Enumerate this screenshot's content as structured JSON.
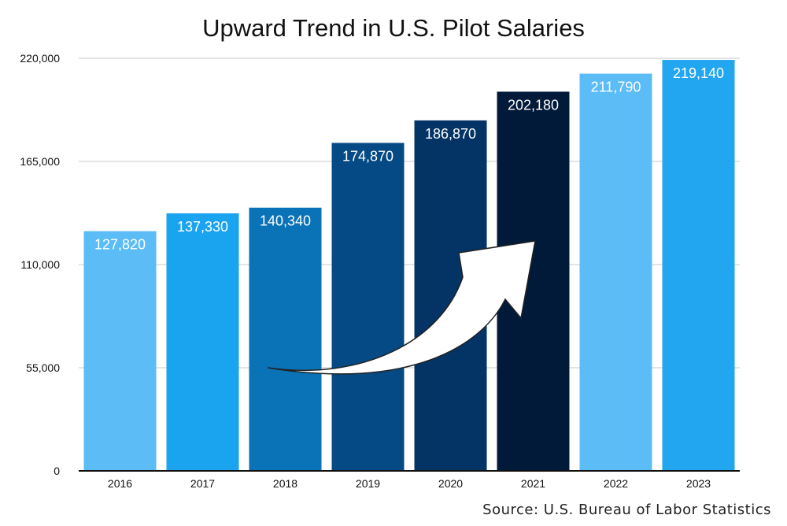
{
  "chart_data": {
    "type": "bar",
    "title": "Upward Trend in U.S. Pilot Salaries",
    "categories": [
      "2016",
      "2017",
      "2018",
      "2019",
      "2020",
      "2021",
      "2022",
      "2023"
    ],
    "values": [
      127820,
      137330,
      140340,
      174870,
      186870,
      202180,
      211790,
      219140
    ],
    "value_labels": [
      "127,820",
      "137,330",
      "140,340",
      "174,870",
      "186,870",
      "202,180",
      "211,790",
      "219,140"
    ],
    "bar_colors": [
      "#5bbcf6",
      "#1aa3ef",
      "#0a72b6",
      "#054a84",
      "#033465",
      "#021a3a",
      "#5bbcf6",
      "#22a6f0"
    ],
    "ylim": [
      0,
      220000
    ],
    "yticks": [
      0,
      55000,
      110000,
      165000,
      220000
    ],
    "ytick_labels": [
      "0",
      "55,000",
      "110,000",
      "165,000",
      "220,000"
    ],
    "xlabel": "",
    "ylabel": "",
    "grid": true,
    "annotation": "upward-arrow"
  },
  "source": "Source: U.S. Bureau of Labor Statistics"
}
